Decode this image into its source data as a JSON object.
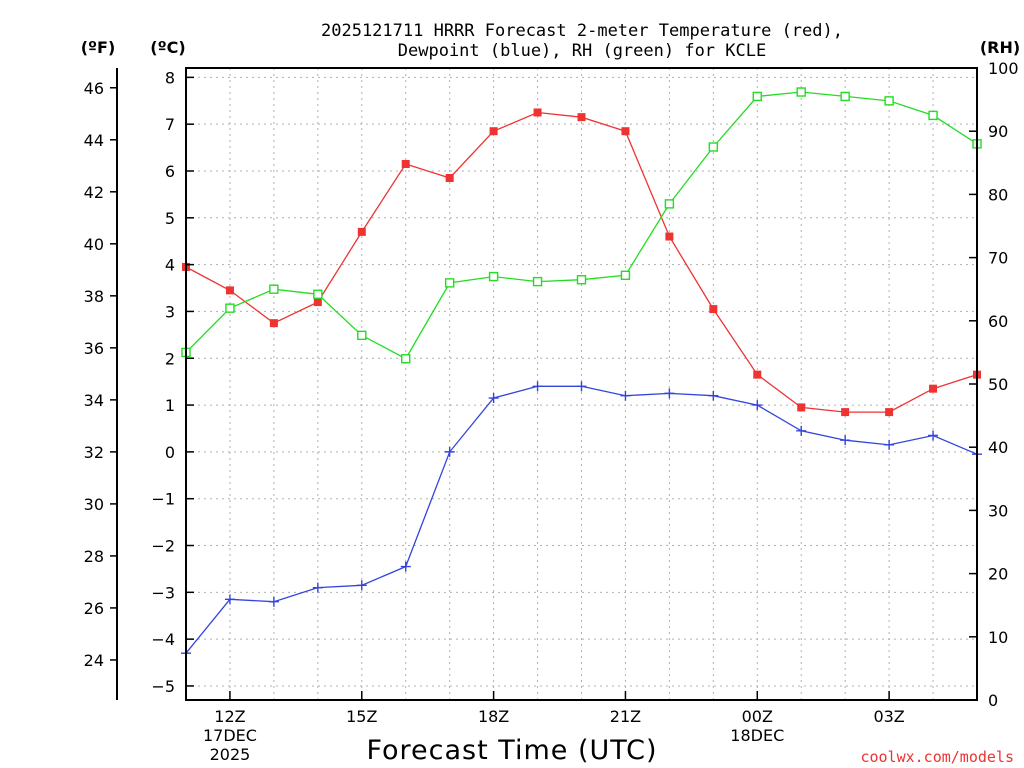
{
  "chart_data": {
    "type": "line",
    "title_line1": "2025121711 HRRR Forecast 2-meter Temperature (red),",
    "title_line2": "Dewpoint (blue), RH (green) for KCLE",
    "xlabel": "Forecast Time (UTC)",
    "credit": "coolwx.com/models",
    "unit_f": "(ºF)",
    "unit_c": "(ºC)",
    "unit_rh": "(RH)",
    "x_hours": [
      11,
      12,
      13,
      14,
      15,
      16,
      17,
      18,
      19,
      20,
      21,
      22,
      23,
      24,
      25,
      26,
      27,
      28,
      29
    ],
    "xlim": [
      11,
      29
    ],
    "x_ticks": [
      {
        "x": 12,
        "line1": "12Z",
        "line2": "17DEC",
        "line3": "2025"
      },
      {
        "x": 15,
        "line1": "15Z",
        "line2": "",
        "line3": ""
      },
      {
        "x": 18,
        "line1": "18Z",
        "line2": "",
        "line3": ""
      },
      {
        "x": 21,
        "line1": "21Z",
        "line2": "",
        "line3": ""
      },
      {
        "x": 24,
        "line1": "00Z",
        "line2": "18DEC",
        "line3": ""
      },
      {
        "x": 27,
        "line1": "03Z",
        "line2": "",
        "line3": ""
      }
    ],
    "c_axis": {
      "ylim": [
        -5.3,
        8.2
      ],
      "ticks": [
        -5,
        -4,
        -3,
        -2,
        -1,
        0,
        1,
        2,
        3,
        4,
        5,
        6,
        7,
        8
      ]
    },
    "f_axis": {
      "ticks": [
        24,
        26,
        28,
        30,
        32,
        34,
        36,
        38,
        40,
        42,
        44,
        46
      ]
    },
    "rh_axis": {
      "ylim": [
        0,
        100
      ],
      "ticks": [
        0,
        10,
        20,
        30,
        40,
        50,
        60,
        70,
        80,
        90,
        100
      ]
    },
    "series": [
      {
        "name": "Temperature",
        "color": "#ee3333",
        "axis": "c",
        "marker": "filled-square",
        "values": [
          3.95,
          3.45,
          2.75,
          3.2,
          4.7,
          6.15,
          5.85,
          6.85,
          7.25,
          7.15,
          6.85,
          4.6,
          3.05,
          1.65,
          0.95,
          0.85,
          0.85,
          1.35,
          1.65
        ]
      },
      {
        "name": "Dewpoint",
        "color": "#3344dd",
        "axis": "c",
        "marker": "plus",
        "values": [
          -4.3,
          -3.15,
          -3.2,
          -2.9,
          -2.85,
          -2.45,
          0.0,
          1.15,
          1.4,
          1.4,
          1.2,
          1.25,
          1.2,
          1.0,
          0.45,
          0.25,
          0.15,
          0.35,
          -0.05
        ]
      },
      {
        "name": "RH",
        "color": "#22dd22",
        "axis": "rh",
        "marker": "open-square",
        "values": [
          55,
          62,
          65,
          64.2,
          57.7,
          54,
          66,
          67,
          66.2,
          66.5,
          67.2,
          78.5,
          87.5,
          95.5,
          96.2,
          95.5,
          94.8,
          92.5,
          88
        ]
      }
    ]
  }
}
